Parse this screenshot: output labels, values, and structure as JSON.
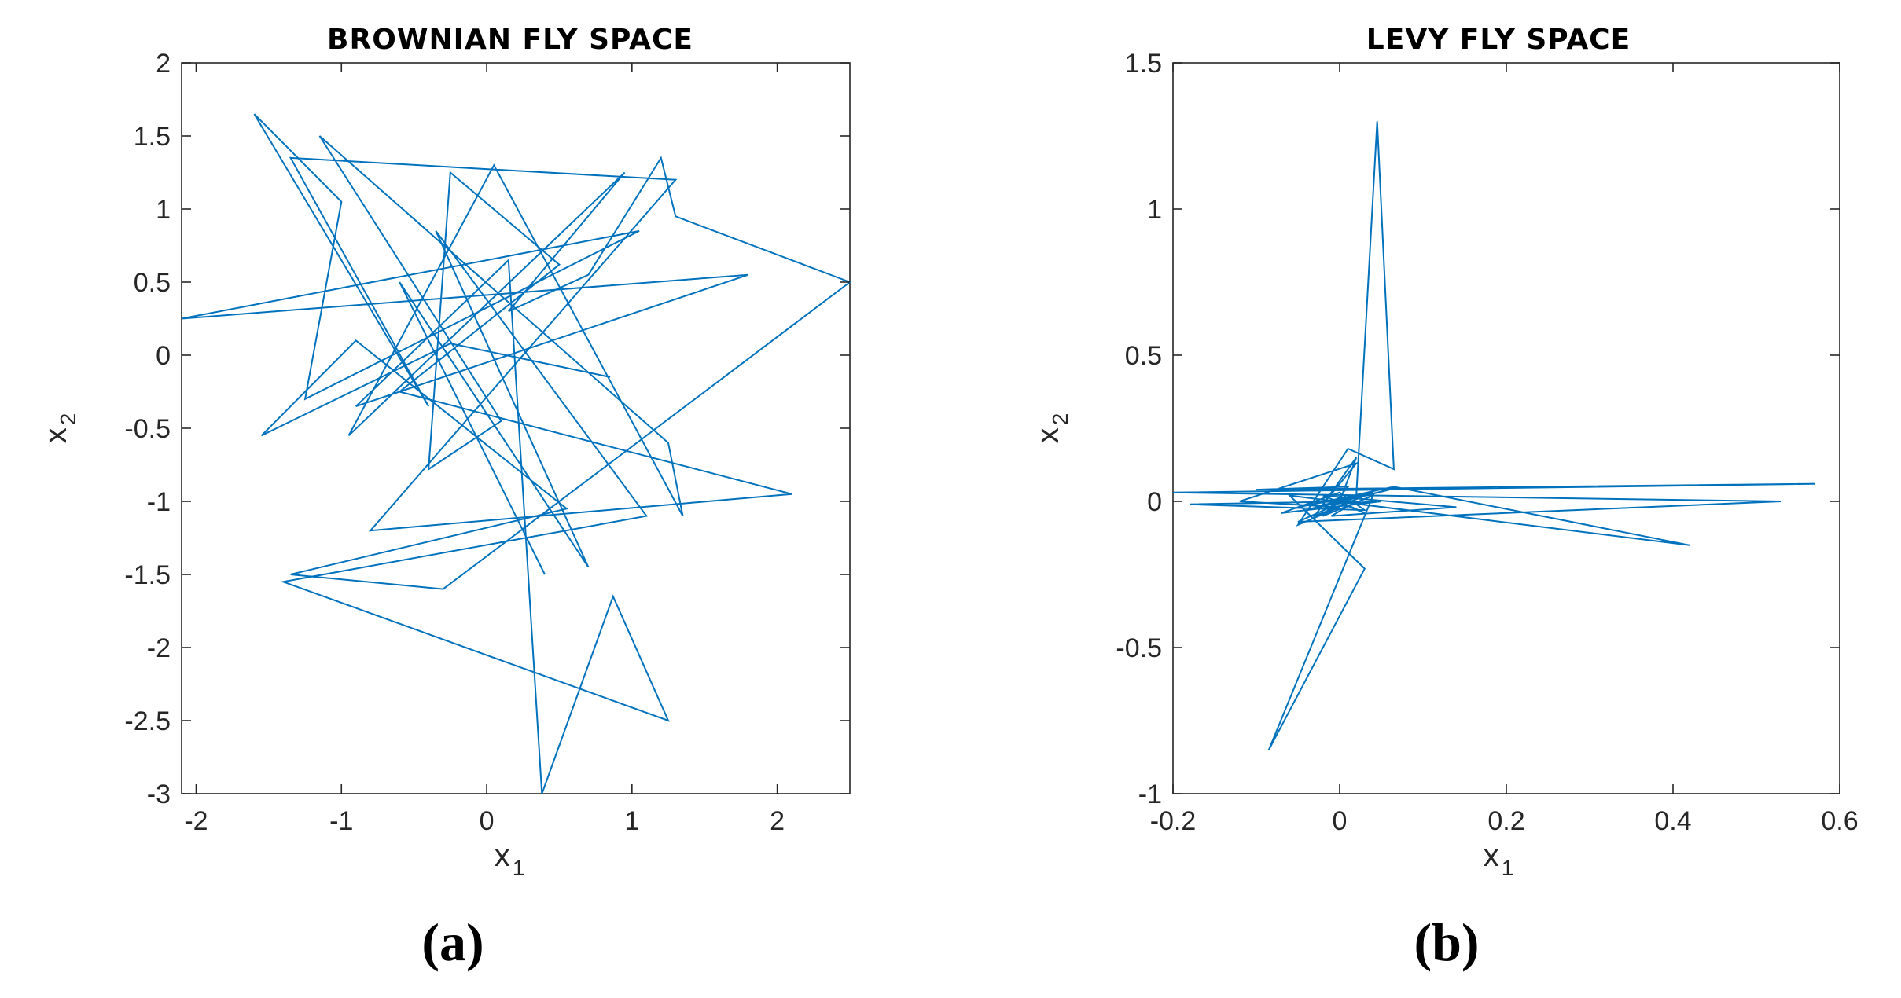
{
  "figure_captions": [
    "(a)",
    "(b)"
  ],
  "chart_data": [
    {
      "type": "line",
      "title": "BROWNIAN FLY SPACE",
      "xlabel": "x",
      "xlabel_sub": "1",
      "ylabel": "x",
      "ylabel_sub": "2",
      "xlim": [
        -2.1,
        2.5
      ],
      "ylim": [
        -3,
        2
      ],
      "xticks": [
        -2,
        -1,
        0,
        1,
        2
      ],
      "xtick_labels": [
        "-2",
        "-1",
        "0",
        "1",
        "2"
      ],
      "yticks": [
        2,
        1.5,
        1,
        0.5,
        0,
        -0.5,
        -1,
        -1.5,
        -2,
        -2.5,
        -3
      ],
      "ytick_labels": [
        "2",
        "1.5",
        "1",
        "0.5",
        "0",
        "-0.5",
        "-1",
        "-1.5",
        "-2",
        "-2.5",
        "-3"
      ],
      "color": "#0072BD",
      "series": [
        {
          "name": "path",
          "x": [
            0.4,
            -0.6,
            0.7,
            -0.35,
            1.1,
            -1.4,
            1.25,
            0.87,
            0.38,
            0.15,
            -0.9,
            1.8,
            -2.1,
            1.05,
            -1.25,
            -1.0,
            -1.6,
            -0.4,
            -1.35,
            1.3,
            -0.8,
            2.1,
            -0.6,
            0.5,
            -0.25,
            -0.4,
            0.1,
            -1.15,
            1.25,
            1.35,
            0.05,
            -0.95,
            0.95,
            0.15,
            0.7,
            1.2,
            1.3,
            2.5,
            -0.3,
            -1.35,
            0.55,
            -0.9,
            -1.55,
            -0.25,
            0.85
          ],
          "y": [
            -1.5,
            0.5,
            -1.45,
            0.85,
            -1.1,
            -1.55,
            -2.5,
            -1.65,
            -3.0,
            0.65,
            -0.35,
            0.55,
            0.25,
            0.85,
            -0.3,
            1.05,
            1.65,
            -0.35,
            1.35,
            1.2,
            -1.2,
            -0.95,
            -0.25,
            0.62,
            1.25,
            -0.78,
            -0.45,
            1.5,
            -0.6,
            -1.1,
            1.3,
            -0.55,
            1.25,
            0.3,
            0.55,
            1.35,
            0.95,
            0.5,
            -1.6,
            -1.5,
            -1.05,
            0.1,
            -0.55,
            0.08,
            -0.15
          ]
        }
      ]
    },
    {
      "type": "line",
      "title": "LEVY FLY SPACE",
      "xlabel": "x",
      "xlabel_sub": "1",
      "ylabel": "x",
      "ylabel_sub": "2",
      "xlim": [
        -0.2,
        0.6
      ],
      "ylim": [
        -1,
        1.5
      ],
      "xticks": [
        -0.2,
        0,
        0.2,
        0.4,
        0.6
      ],
      "xtick_labels": [
        "-0.2",
        "0",
        "0.2",
        "0.4",
        "0.6"
      ],
      "yticks": [
        1.5,
        1,
        0.5,
        0,
        -0.5,
        -1
      ],
      "ytick_labels": [
        "1.5",
        "1",
        "0.5",
        "0",
        "-0.5",
        "-1"
      ],
      "color": "#0072BD",
      "series": [
        {
          "name": "path",
          "x": [
            0.0,
            0.02,
            -0.03,
            0.04,
            -0.05,
            0.0,
            0.065,
            0.42,
            -0.06,
            0.03,
            -0.085,
            0.04,
            -0.02,
            0.01,
            -0.1,
            0.57,
            -0.2,
            0.53,
            -0.05,
            0.02,
            -0.04,
            0.06,
            0.0,
            0.02,
            0.045,
            0.065,
            0.01,
            -0.05,
            0.0,
            -0.12,
            0.02,
            -0.02,
            0.05,
            -0.07,
            0.0,
            0.03,
            -0.18,
            0.02,
            -0.01,
            0.14,
            -0.02,
            0.03,
            0.0
          ],
          "y": [
            0.0,
            0.15,
            -0.05,
            0.03,
            -0.02,
            0.01,
            0.05,
            -0.15,
            0.02,
            -0.23,
            -0.85,
            0.02,
            -0.05,
            0.05,
            0.04,
            0.06,
            0.03,
            0.0,
            -0.07,
            0.02,
            -0.03,
            0.04,
            0.0,
            0.02,
            1.3,
            0.11,
            0.18,
            -0.08,
            -0.02,
            0.0,
            0.13,
            -0.01,
            0.0,
            -0.04,
            0.03,
            -0.03,
            -0.01,
            0.0,
            -0.05,
            -0.02,
            0.02,
            -0.04,
            0.0
          ]
        }
      ]
    }
  ]
}
